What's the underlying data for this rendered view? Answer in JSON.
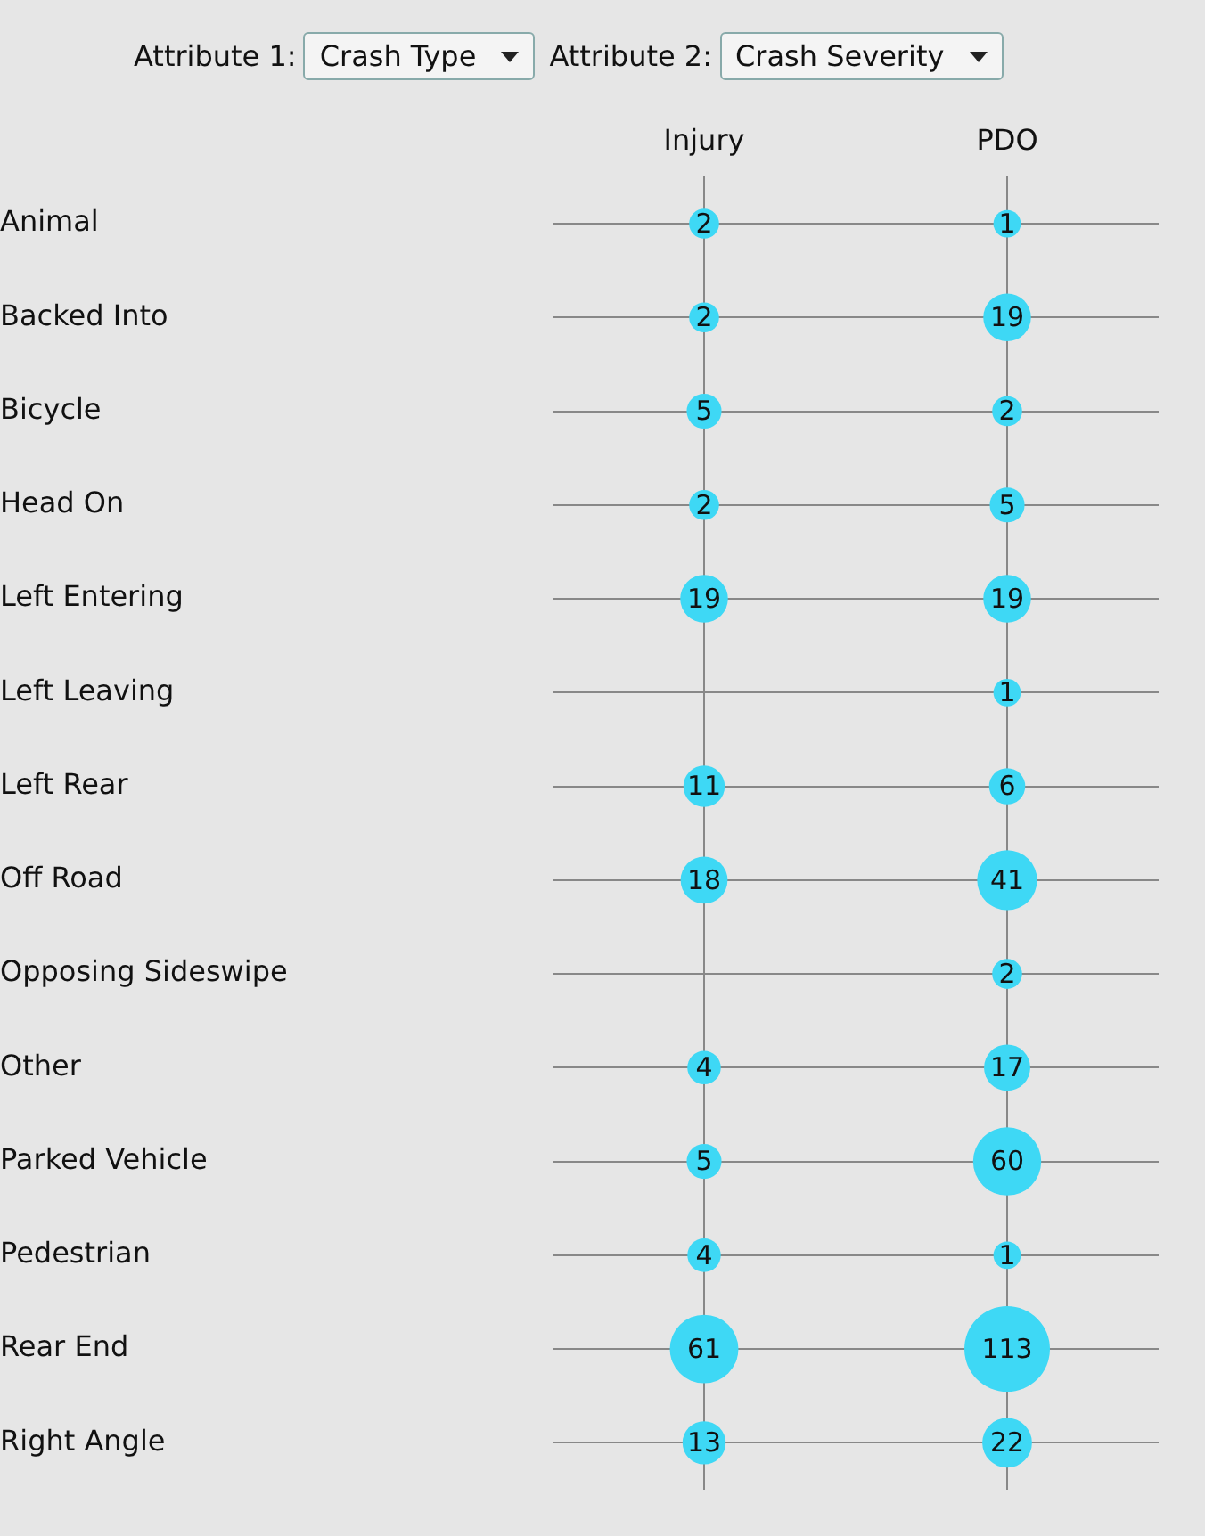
{
  "chart_data": {
    "type": "heatmap",
    "categories": [
      "Injury",
      "PDO"
    ],
    "y_categories": [
      "Animal",
      "Backed Into",
      "Bicycle",
      "Head On",
      "Left Entering",
      "Left Leaving",
      "Left Rear",
      "Off Road",
      "Opposing Sideswipe",
      "Other",
      "Parked Vehicle",
      "Pedestrian",
      "Rear End",
      "Right Angle"
    ],
    "cells": [
      [
        2,
        1
      ],
      [
        2,
        19
      ],
      [
        5,
        2
      ],
      [
        2,
        5
      ],
      [
        19,
        19
      ],
      [
        null,
        1
      ],
      [
        11,
        6
      ],
      [
        18,
        41
      ],
      [
        null,
        2
      ],
      [
        4,
        17
      ],
      [
        5,
        60
      ],
      [
        4,
        1
      ],
      [
        61,
        113
      ],
      [
        13,
        22
      ]
    ],
    "data_labels": true,
    "grid": true,
    "color": "#3ed8f5",
    "annotations": [
      "Attribute 1:",
      "Crash Type",
      "Attribute 2:",
      "Crash Severity"
    ]
  }
}
